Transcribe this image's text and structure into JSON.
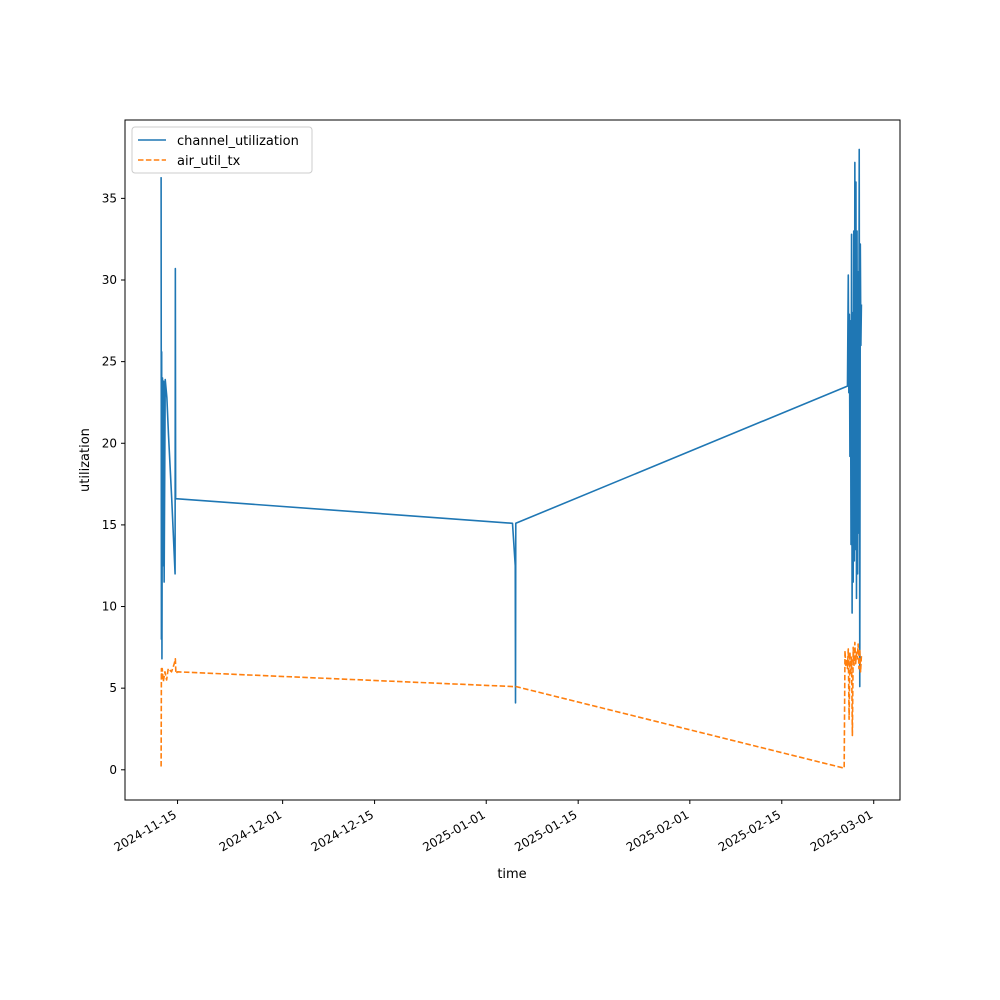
{
  "chart_data": {
    "type": "line",
    "title": "",
    "xlabel": "time",
    "ylabel": "utilization",
    "x_axis_type": "date",
    "xlim": [
      "2024-11-07",
      "2025-03-05"
    ],
    "ylim": [
      -1.85,
      39.8
    ],
    "x_ticks": [
      "2024-11-15",
      "2024-12-01",
      "2024-12-15",
      "2025-01-01",
      "2025-01-15",
      "2025-02-01",
      "2025-02-15",
      "2025-03-01"
    ],
    "y_ticks": [
      0,
      5,
      10,
      15,
      20,
      25,
      30,
      35
    ],
    "grid": false,
    "legend_position": "upper-left",
    "series": [
      {
        "name": "channel_utilization",
        "color": "#1f77b4",
        "style": "solid",
        "points": [
          [
            "2024-11-12 12:00",
            36.3
          ],
          [
            "2024-11-12 13:00",
            8.0
          ],
          [
            "2024-11-12 14:00",
            25.6
          ],
          [
            "2024-11-12 15:00",
            6.8
          ],
          [
            "2024-11-12 17:00",
            24.0
          ],
          [
            "2024-11-12 19:00",
            12.5
          ],
          [
            "2024-11-12 21:00",
            23.8
          ],
          [
            "2024-11-12 23:00",
            11.5
          ],
          [
            "2024-11-13 03:00",
            23.9
          ],
          [
            "2024-11-13 09:00",
            22.8
          ],
          [
            "2024-11-13 15:00",
            20.5
          ],
          [
            "2024-11-14 03:00",
            16.5
          ],
          [
            "2024-11-14 15:00",
            12.0
          ],
          [
            "2024-11-14 16:00",
            30.7
          ],
          [
            "2024-11-14 17:00",
            16.6
          ],
          [
            "2024-11-15 00:00",
            16.6
          ],
          [
            "2025-01-05 00:00",
            15.1
          ],
          [
            "2025-01-05 10:00",
            12.5
          ],
          [
            "2025-01-05 11:00",
            4.1
          ],
          [
            "2025-01-05 12:00",
            15.1
          ],
          [
            "2025-02-25 00:00",
            23.5
          ],
          [
            "2025-02-25 03:00",
            30.3
          ],
          [
            "2025-02-25 05:00",
            23.1
          ],
          [
            "2025-02-25 07:00",
            27.9
          ],
          [
            "2025-02-25 09:00",
            19.2
          ],
          [
            "2025-02-25 11:00",
            27.5
          ],
          [
            "2025-02-25 13:00",
            13.8
          ],
          [
            "2025-02-25 15:00",
            32.8
          ],
          [
            "2025-02-25 17:00",
            9.6
          ],
          [
            "2025-02-25 19:00",
            28.0
          ],
          [
            "2025-02-25 21:00",
            11.5
          ],
          [
            "2025-02-25 23:00",
            33.0
          ],
          [
            "2025-02-26 01:00",
            12.8
          ],
          [
            "2025-02-26 03:00",
            37.2
          ],
          [
            "2025-02-26 05:00",
            13.5
          ],
          [
            "2025-02-26 07:00",
            36.0
          ],
          [
            "2025-02-26 09:00",
            10.5
          ],
          [
            "2025-02-26 11:00",
            33.0
          ],
          [
            "2025-02-26 13:00",
            12.0
          ],
          [
            "2025-02-26 15:00",
            30.5
          ],
          [
            "2025-02-26 17:00",
            14.5
          ],
          [
            "2025-02-26 19:00",
            38.0
          ],
          [
            "2025-02-26 21:00",
            5.1
          ],
          [
            "2025-02-26 23:00",
            32.2
          ],
          [
            "2025-02-27 01:00",
            26.0
          ],
          [
            "2025-02-27 03:00",
            28.5
          ]
        ]
      },
      {
        "name": "air_util_tx",
        "color": "#ff7f0e",
        "style": "dashed",
        "points": [
          [
            "2024-11-12 12:00",
            0.2
          ],
          [
            "2024-11-12 13:00",
            6.2
          ],
          [
            "2024-11-12 14:00",
            5.5
          ],
          [
            "2024-11-12 16:00",
            6.2
          ],
          [
            "2024-11-12 20:00",
            5.4
          ],
          [
            "2024-11-13 02:00",
            6.0
          ],
          [
            "2024-11-13 08:00",
            5.5
          ],
          [
            "2024-11-13 14:00",
            6.2
          ],
          [
            "2024-11-14 02:00",
            6.0
          ],
          [
            "2024-11-14 12:00",
            6.5
          ],
          [
            "2024-11-14 16:00",
            6.8
          ],
          [
            "2024-11-14 18:00",
            5.9
          ],
          [
            "2024-11-15 00:00",
            6.0
          ],
          [
            "2025-01-05 00:00",
            5.1
          ],
          [
            "2025-01-05 12:00",
            5.1
          ],
          [
            "2025-02-24 12:00",
            0.1
          ],
          [
            "2025-02-24 15:00",
            7.3
          ],
          [
            "2025-02-24 18:00",
            6.3
          ],
          [
            "2025-02-24 21:00",
            6.8
          ],
          [
            "2025-02-25 00:00",
            6.2
          ],
          [
            "2025-02-25 03:00",
            7.4
          ],
          [
            "2025-02-25 06:00",
            3.1
          ],
          [
            "2025-02-25 09:00",
            7.2
          ],
          [
            "2025-02-25 12:00",
            5.8
          ],
          [
            "2025-02-25 15:00",
            6.9
          ],
          [
            "2025-02-25 18:00",
            2.1
          ],
          [
            "2025-02-25 21:00",
            7.5
          ],
          [
            "2025-02-26 00:00",
            6.4
          ],
          [
            "2025-02-26 03:00",
            7.8
          ],
          [
            "2025-02-26 06:00",
            6.5
          ],
          [
            "2025-02-26 09:00",
            7.2
          ],
          [
            "2025-02-26 12:00",
            6.8
          ],
          [
            "2025-02-26 15:00",
            7.7
          ],
          [
            "2025-02-26 18:00",
            6.2
          ],
          [
            "2025-02-26 21:00",
            7.4
          ],
          [
            "2025-02-27 00:00",
            6.0
          ],
          [
            "2025-02-27 03:00",
            7.0
          ]
        ]
      }
    ]
  }
}
